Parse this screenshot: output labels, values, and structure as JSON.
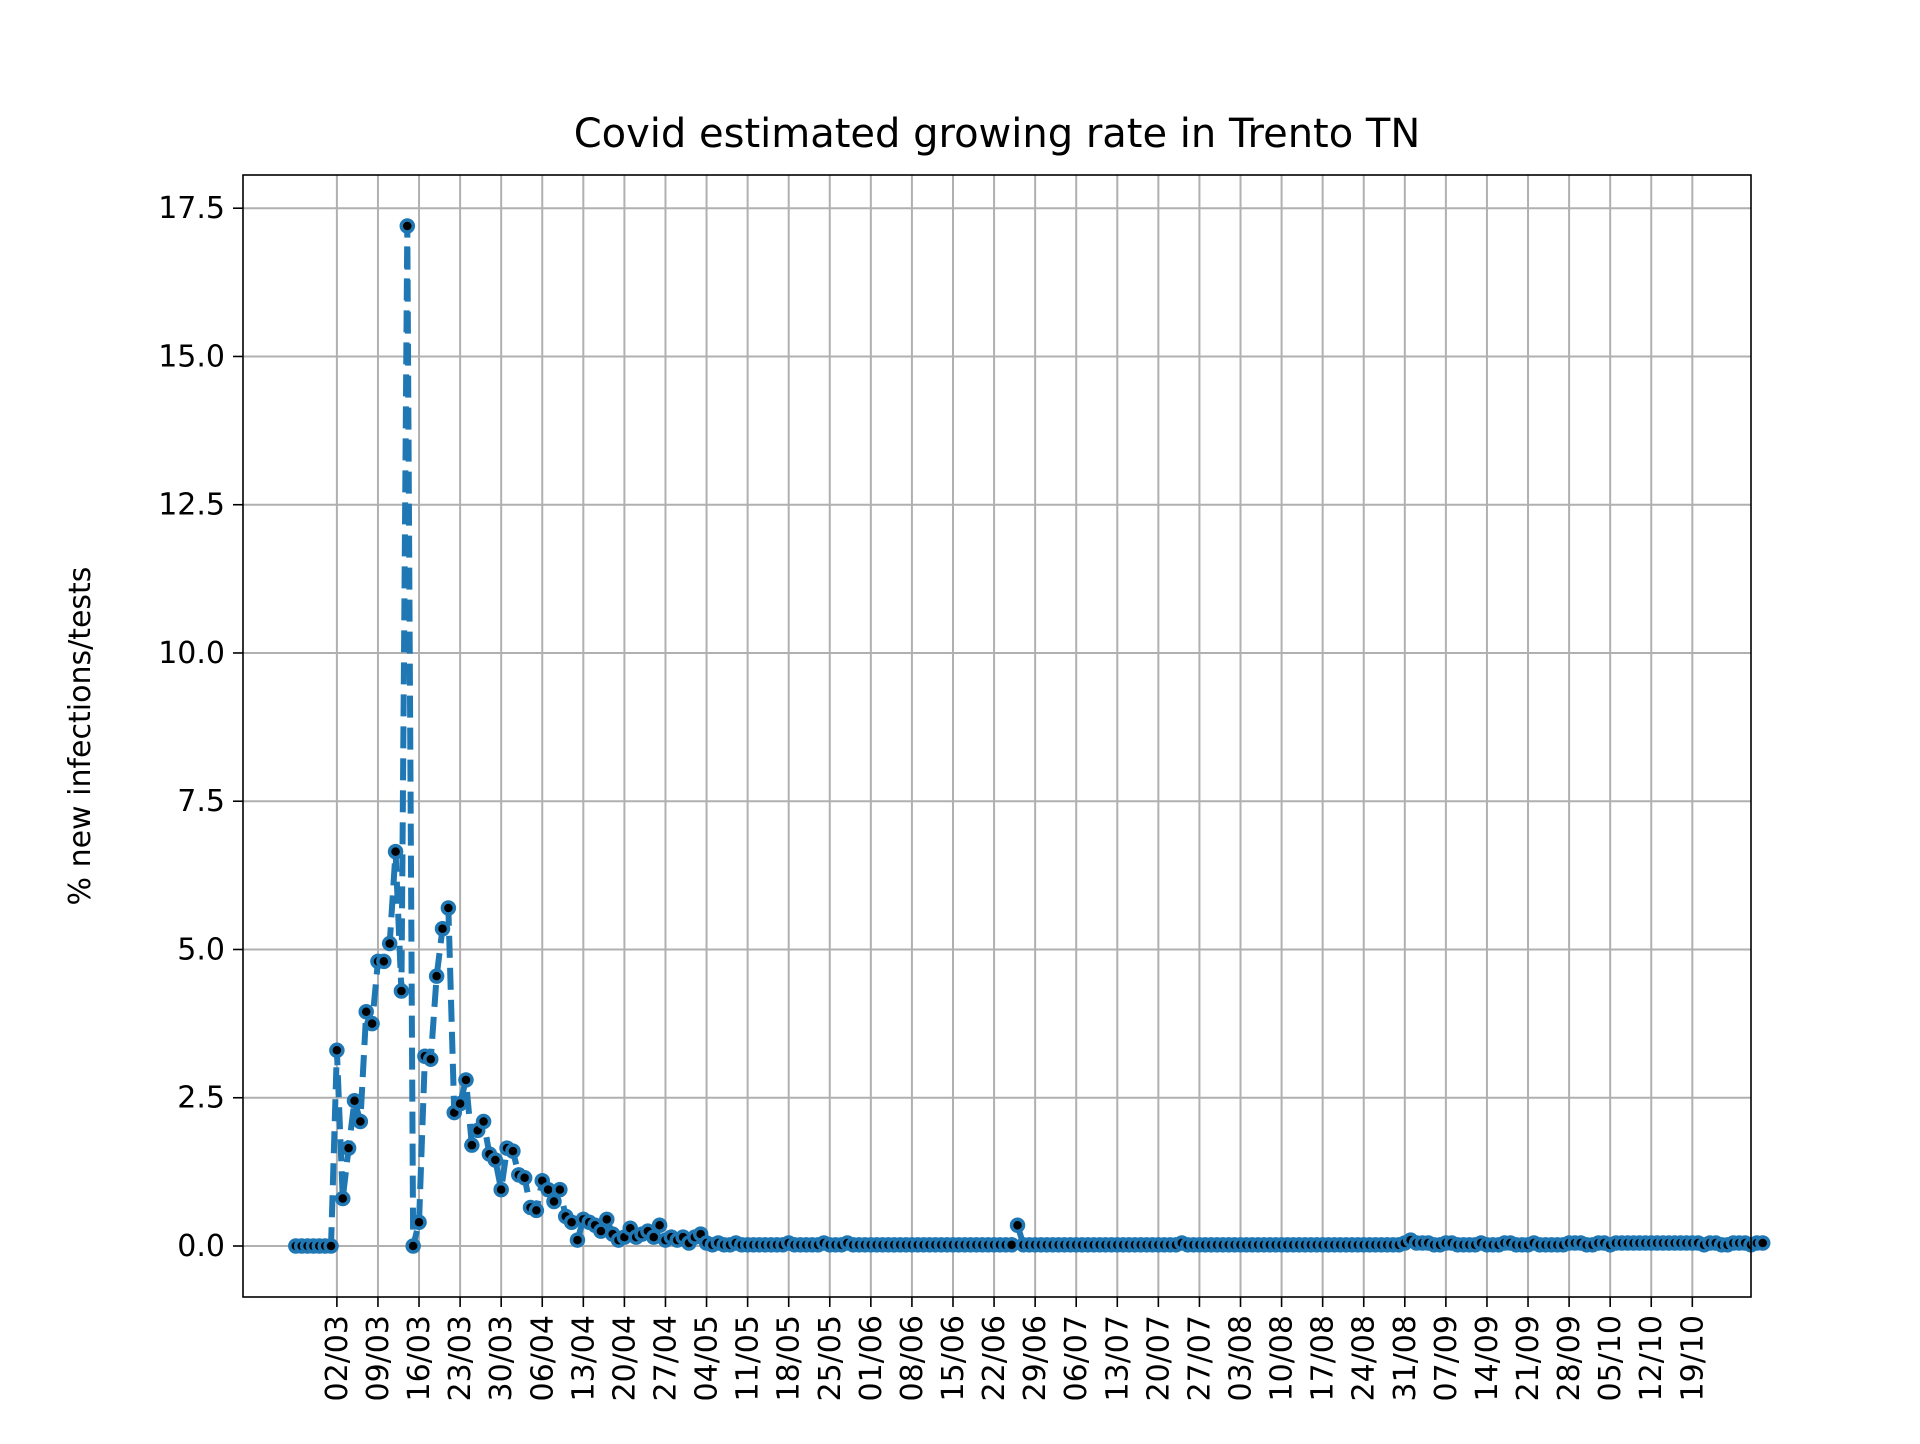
{
  "chart_data": {
    "type": "line",
    "title": "Covid estimated growing rate in Trento TN",
    "xlabel": "",
    "ylabel": "% new infections/tests",
    "x_start": "2020-02-24",
    "x_end": "2020-10-19",
    "xlim": [
      "2020-02-15",
      "2020-10-29"
    ],
    "ylim": [
      -0.86,
      18.06
    ],
    "yticks": [
      0.0,
      2.5,
      5.0,
      7.5,
      10.0,
      12.5,
      15.0,
      17.5
    ],
    "ytick_labels": [
      "0.0",
      "2.5",
      "5.0",
      "7.5",
      "10.0",
      "12.5",
      "15.0",
      "17.5"
    ],
    "xticks": [
      "2020-03-02",
      "2020-03-09",
      "2020-03-16",
      "2020-03-23",
      "2020-03-30",
      "2020-04-06",
      "2020-04-13",
      "2020-04-20",
      "2020-04-27",
      "2020-05-04",
      "2020-05-11",
      "2020-05-18",
      "2020-05-25",
      "2020-06-01",
      "2020-06-08",
      "2020-06-15",
      "2020-06-22",
      "2020-06-29",
      "2020-07-06",
      "2020-07-13",
      "2020-07-20",
      "2020-07-27",
      "2020-08-03",
      "2020-08-10",
      "2020-08-17",
      "2020-08-24",
      "2020-08-31",
      "2020-09-07",
      "2020-09-14",
      "2020-09-21",
      "2020-09-28",
      "2020-10-05",
      "2020-10-12",
      "2020-10-19"
    ],
    "xtick_labels": [
      "02/03",
      "09/03",
      "16/03",
      "23/03",
      "30/03",
      "06/04",
      "13/04",
      "20/04",
      "27/04",
      "04/05",
      "11/05",
      "18/05",
      "25/05",
      "01/06",
      "08/06",
      "15/06",
      "22/06",
      "29/06",
      "06/07",
      "13/07",
      "20/07",
      "27/07",
      "03/08",
      "10/08",
      "17/08",
      "24/08",
      "31/08",
      "07/09",
      "14/09",
      "21/09",
      "28/09",
      "05/10",
      "12/10",
      "19/10"
    ],
    "grid": true,
    "series": [
      {
        "name": "",
        "color": "#1f77b4",
        "marker_inner_color": "#000000",
        "line_style": "dashed",
        "values": [
          0,
          0,
          0,
          0,
          0,
          0,
          0,
          3.3,
          0.8,
          1.65,
          2.45,
          2.1,
          3.95,
          3.75,
          4.8,
          4.8,
          5.1,
          6.65,
          4.3,
          17.2,
          0,
          0.4,
          3.2,
          3.15,
          4.55,
          5.35,
          5.7,
          2.25,
          2.4,
          2.8,
          1.7,
          1.95,
          2.1,
          1.55,
          1.45,
          0.95,
          1.65,
          1.6,
          1.2,
          1.15,
          0.65,
          0.6,
          1.1,
          0.95,
          0.75,
          0.95,
          0.5,
          0.4,
          0.1,
          0.45,
          0.4,
          0.35,
          0.25,
          0.45,
          0.2,
          0.1,
          0.15,
          0.3,
          0.15,
          0.2,
          0.25,
          0.15,
          0.35,
          0.1,
          0.15,
          0.1,
          0.15,
          0.05,
          0.15,
          0.2,
          0.05,
          0.02,
          0.05,
          0.02,
          0.02,
          0.05,
          0.02,
          0.02,
          0.02,
          0.02,
          0.02,
          0.02,
          0.02,
          0.02,
          0.05,
          0.02,
          0.02,
          0.02,
          0.02,
          0.02,
          0.05,
          0.02,
          0.02,
          0.02,
          0.05,
          0.02,
          0.02,
          0.02,
          0.02,
          0.02,
          0.02,
          0.02,
          0.02,
          0.02,
          0.02,
          0.02,
          0.02,
          0.02,
          0.02,
          0.02,
          0.02,
          0.02,
          0.02,
          0.02,
          0.02,
          0.02,
          0.02,
          0.02,
          0.02,
          0.02,
          0.02,
          0.02,
          0.02,
          0.35,
          0.02,
          0.02,
          0.02,
          0.02,
          0.02,
          0.02,
          0.02,
          0.02,
          0.02,
          0.02,
          0.02,
          0.02,
          0.02,
          0.02,
          0.02,
          0.02,
          0.02,
          0.02,
          0.02,
          0.02,
          0.02,
          0.02,
          0.02,
          0.02,
          0.02,
          0.02,
          0.02,
          0.05,
          0.02,
          0.02,
          0.02,
          0.02,
          0.02,
          0.02,
          0.02,
          0.02,
          0.02,
          0.02,
          0.02,
          0.02,
          0.02,
          0.02,
          0.02,
          0.02,
          0.02,
          0.02,
          0.02,
          0.02,
          0.02,
          0.02,
          0.02,
          0.02,
          0.02,
          0.02,
          0.02,
          0.02,
          0.02,
          0.02,
          0.02,
          0.02,
          0.02,
          0.02,
          0.02,
          0.02,
          0.02,
          0.05,
          0.1,
          0.05,
          0.05,
          0.05,
          0.02,
          0.02,
          0.05,
          0.05,
          0.02,
          0.02,
          0.02,
          0.02,
          0.05,
          0.02,
          0.02,
          0.02,
          0.05,
          0.05,
          0.02,
          0.02,
          0.02,
          0.05,
          0.02,
          0.02,
          0.02,
          0.02,
          0.02,
          0.05,
          0.05,
          0.05,
          0.02,
          0.02,
          0.05,
          0.05,
          0.02,
          0.05,
          0.05,
          0.05,
          0.05,
          0.05,
          0.05,
          0.05,
          0.05,
          0.05,
          0.05,
          0.05,
          0.05,
          0.05,
          0.05,
          0.05,
          0.02,
          0.05,
          0.05,
          0.02,
          0.02,
          0.05,
          0.05,
          0.05,
          0.02,
          0.05,
          0.05
        ]
      }
    ]
  }
}
